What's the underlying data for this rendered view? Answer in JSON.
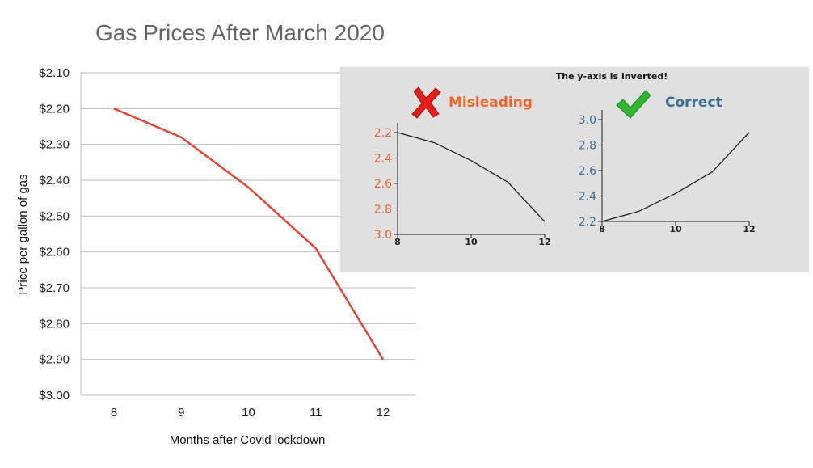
{
  "chart_data": [
    {
      "type": "line",
      "title": "Gas Prices After March 2020",
      "xlabel": "Months after Covid lockdown",
      "ylabel": "Price per gallon of gas",
      "x": [
        8,
        9,
        10,
        11,
        12
      ],
      "x_tick_labels": [
        "8",
        "9",
        "10",
        "11",
        "12"
      ],
      "y": [
        2.2,
        2.28,
        2.42,
        2.59,
        2.9
      ],
      "y_tick_values": [
        2.1,
        2.2,
        2.3,
        2.4,
        2.5,
        2.6,
        2.7,
        2.8,
        2.9,
        3.0
      ],
      "y_tick_labels": [
        "$2.10",
        "$2.20",
        "$2.30",
        "$2.40",
        "$2.50",
        "$2.60",
        "$2.70",
        "$2.80",
        "$2.90",
        "$3.00"
      ],
      "ylim": [
        2.1,
        3.0
      ],
      "y_inverted": true,
      "grid": true,
      "line_color": "#e2473a"
    },
    {
      "type": "line",
      "title": "Misleading",
      "x": [
        8,
        9,
        10,
        11,
        12
      ],
      "x_tick_labels": [
        "8",
        "10",
        "12"
      ],
      "x_tick_values": [
        8,
        10,
        12
      ],
      "y": [
        2.2,
        2.28,
        2.42,
        2.59,
        2.9
      ],
      "y_tick_values": [
        2.2,
        2.4,
        2.6,
        2.8,
        3.0
      ],
      "y_tick_labels": [
        "2.2",
        "2.4",
        "2.6",
        "2.8",
        "3.0"
      ],
      "ylim": [
        2.2,
        3.0
      ],
      "y_inverted": true,
      "label_color": "#f0642a",
      "line_color": "#222222"
    },
    {
      "type": "line",
      "title": "Correct",
      "x": [
        8,
        9,
        10,
        11,
        12
      ],
      "x_tick_labels": [
        "8",
        "10",
        "12"
      ],
      "x_tick_values": [
        8,
        10,
        12
      ],
      "y": [
        2.2,
        2.28,
        2.42,
        2.59,
        2.9
      ],
      "y_tick_values": [
        2.2,
        2.4,
        2.6,
        2.8,
        3.0
      ],
      "y_tick_labels": [
        "2.2",
        "2.4",
        "2.6",
        "2.8",
        "3.0"
      ],
      "ylim": [
        2.2,
        3.0
      ],
      "y_inverted": false,
      "label_color": "#3e6f8f",
      "line_color": "#222222"
    }
  ],
  "inset": {
    "note": "The y-axis is inverted!",
    "background": "#e0e0e0",
    "wrong_icon": "red-cross-icon",
    "right_icon": "green-check-icon",
    "wrong_color": "#e0201c",
    "right_color": "#2fb52f"
  }
}
